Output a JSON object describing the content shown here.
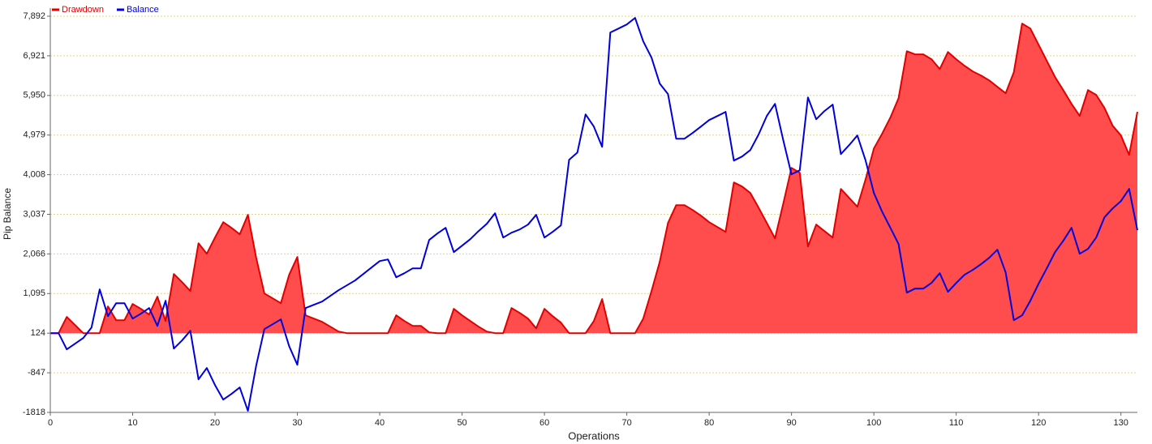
{
  "chart_data": {
    "type": "line",
    "x_label": "Operations",
    "y_label": "Pip Balance",
    "legend": "top-left",
    "grid": true,
    "x": [
      0,
      1,
      2,
      3,
      4,
      5,
      6,
      7,
      8,
      9,
      10,
      11,
      12,
      13,
      14,
      15,
      16,
      17,
      18,
      19,
      20,
      21,
      22,
      23,
      24,
      25,
      26,
      27,
      28,
      29,
      30,
      31,
      32,
      33,
      34,
      35,
      36,
      37,
      38,
      39,
      40,
      41,
      42,
      43,
      44,
      45,
      46,
      47,
      48,
      49,
      50,
      51,
      52,
      53,
      54,
      55,
      56,
      57,
      58,
      59,
      60,
      61,
      62,
      63,
      64,
      65,
      66,
      67,
      68,
      69,
      70,
      71,
      72,
      73,
      74,
      75,
      76,
      77,
      78,
      79,
      80,
      81,
      82,
      83,
      84,
      85,
      86,
      87,
      88,
      89,
      90,
      91,
      92,
      93,
      94,
      95,
      96,
      97,
      98,
      99,
      100,
      101,
      102,
      103,
      104,
      105,
      106,
      107,
      108,
      109,
      110,
      111,
      112,
      113,
      114,
      115,
      116,
      117,
      118,
      119,
      120,
      121,
      122,
      123,
      124,
      125,
      126,
      127,
      128,
      129,
      130,
      131,
      132
    ],
    "xlim": [
      0,
      132
    ],
    "xticks": [
      0,
      10,
      20,
      30,
      40,
      50,
      60,
      70,
      80,
      90,
      100,
      110,
      120,
      130
    ],
    "ylim": [
      -1818,
      7892
    ],
    "yticks": [
      -1818,
      -847,
      124,
      {
        "value": 1095,
        "label": "1,095"
      },
      {
        "value": 2066,
        "label": "2,066"
      },
      {
        "value": 3037,
        "label": "3,037"
      },
      {
        "value": 4008,
        "label": "4,008"
      },
      {
        "value": 4979,
        "label": "4,979"
      },
      {
        "value": 5950,
        "label": "5,950"
      },
      {
        "value": 6921,
        "label": "6,921"
      },
      {
        "value": 7892,
        "label": "7,892"
      }
    ],
    "series": [
      {
        "name": "Drawdown",
        "type": "area",
        "color": "#e00000",
        "fill": "#ff4d4d",
        "values": [
          124,
          124,
          521,
          323,
          124,
          124,
          124,
          779,
          442,
          442,
          839,
          720,
          581,
          1018,
          422,
          1574,
          1375,
          1157,
          2329,
          2070,
          2467,
          2845,
          2706,
          2547,
          3024,
          1971,
          1097,
          978,
          859,
          1554,
          1991,
          561,
          481,
          402,
          283,
          164,
          124,
          124,
          124,
          124,
          124,
          124,
          561,
          422,
          303,
          303,
          144,
          124,
          124,
          720,
          561,
          422,
          283,
          164,
          124,
          124,
          740,
          621,
          481,
          243,
          720,
          541,
          382,
          124,
          124,
          124,
          422,
          958,
          124,
          124,
          124,
          124,
          481,
          1157,
          1872,
          2825,
          3262,
          3262,
          3143,
          3004,
          2845,
          2726,
          2607,
          3818,
          3719,
          3560,
          3202,
          2825,
          2448,
          3302,
          4175,
          4056,
          2249,
          2785,
          2626,
          2467,
          3659,
          3441,
          3222,
          3897,
          4652,
          5010,
          5407,
          5883,
          7035,
          6956,
          6956,
          6837,
          6598,
          7015,
          6837,
          6678,
          6539,
          6440,
          6320,
          6161,
          6003,
          6519,
          7711,
          7591,
          7194,
          6797,
          6400,
          6082,
          5744,
          5447,
          6082,
          5963,
          5645,
          5208,
          4970,
          4493,
          5546
        ]
      },
      {
        "name": "Balance",
        "type": "line",
        "color": "#0000dd",
        "values": [
          124,
          124,
          -273,
          -134,
          5,
          263,
          1196,
          541,
          859,
          859,
          481,
          601,
          740,
          303,
          918,
          -253,
          -55,
          184,
          -1008,
          -730,
          -1147,
          -1504,
          -1365,
          -1207,
          -1780,
          -670,
          223,
          342,
          462,
          -194,
          -650,
          740,
          819,
          899,
          1037,
          1177,
          1296,
          1415,
          1574,
          1733,
          1892,
          1931,
          1494,
          1594,
          1713,
          1713,
          2408,
          2567,
          2706,
          2110,
          2269,
          2428,
          2626,
          2805,
          3063,
          2467,
          2587,
          2666,
          2785,
          3024,
          2467,
          2607,
          2765,
          4374,
          4553,
          5486,
          5188,
          4692,
          7492,
          7591,
          7690,
          7850,
          7274,
          6876,
          6241,
          5983,
          4890,
          4890,
          5030,
          5188,
          5347,
          5446,
          5546,
          4354,
          4453,
          4612,
          4990,
          5447,
          5744,
          4851,
          4017,
          4116,
          5903,
          5367,
          5566,
          5725,
          4513,
          4732,
          4970,
          4354,
          3560,
          3103,
          2706,
          2309,
          1117,
          1216,
          1216,
          1355,
          1594,
          1137,
          1355,
          1554,
          1673,
          1812,
          1971,
          2170,
          1614,
          442,
          561,
          918,
          1335,
          1713,
          2110,
          2388,
          2706,
          2070,
          2189,
          2468,
          2964,
          3182,
          3361,
          3659,
          2646
        ]
      }
    ]
  }
}
